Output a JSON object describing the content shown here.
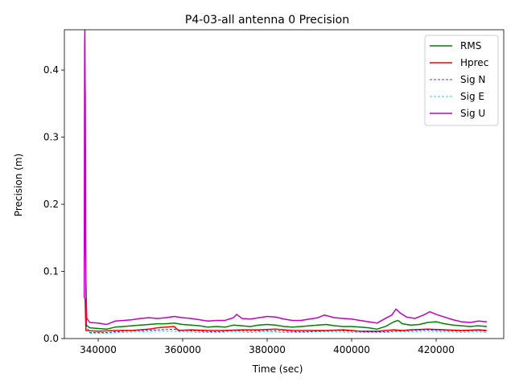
{
  "chart_data": {
    "type": "line",
    "title": "P4-03-all antenna 0 Precision",
    "xlabel": "Time (sec)",
    "ylabel": "Precision (m)",
    "xlim": [
      332000,
      436000
    ],
    "ylim": [
      0,
      0.46
    ],
    "xticks": [
      340000,
      360000,
      380000,
      400000,
      420000
    ],
    "yticks": [
      0.0,
      0.1,
      0.2,
      0.3,
      0.4
    ],
    "xtick_labels": [
      "340000",
      "360000",
      "380000",
      "400000",
      "420000"
    ],
    "ytick_labels": [
      "0.0",
      "0.1",
      "0.2",
      "0.3",
      "0.4"
    ],
    "grid": false,
    "legend_position": "top-right",
    "series": [
      {
        "name": "RMS",
        "color": "#008000",
        "style": "solid",
        "points": [
          [
            336800,
            0.24
          ],
          [
            336900,
            0.23
          ],
          [
            337000,
            0.15
          ],
          [
            337200,
            0.02
          ],
          [
            338000,
            0.016
          ],
          [
            340000,
            0.015
          ],
          [
            342000,
            0.014
          ],
          [
            344000,
            0.017
          ],
          [
            346000,
            0.018
          ],
          [
            348000,
            0.019
          ],
          [
            350000,
            0.02
          ],
          [
            352000,
            0.021
          ],
          [
            354000,
            0.022
          ],
          [
            356000,
            0.022
          ],
          [
            358000,
            0.023
          ],
          [
            360000,
            0.021
          ],
          [
            362000,
            0.02
          ],
          [
            364000,
            0.019
          ],
          [
            366000,
            0.017
          ],
          [
            368000,
            0.018
          ],
          [
            370000,
            0.017
          ],
          [
            372000,
            0.02
          ],
          [
            374000,
            0.019
          ],
          [
            376000,
            0.018
          ],
          [
            378000,
            0.02
          ],
          [
            380000,
            0.021
          ],
          [
            382000,
            0.02
          ],
          [
            384000,
            0.018
          ],
          [
            386000,
            0.017
          ],
          [
            388000,
            0.018
          ],
          [
            390000,
            0.019
          ],
          [
            392000,
            0.02
          ],
          [
            394000,
            0.021
          ],
          [
            396000,
            0.019
          ],
          [
            398000,
            0.018
          ],
          [
            400000,
            0.018
          ],
          [
            402000,
            0.017
          ],
          [
            404000,
            0.016
          ],
          [
            406000,
            0.014
          ],
          [
            408000,
            0.018
          ],
          [
            410000,
            0.025
          ],
          [
            411000,
            0.027
          ],
          [
            412000,
            0.022
          ],
          [
            414000,
            0.02
          ],
          [
            416000,
            0.021
          ],
          [
            418000,
            0.024
          ],
          [
            420000,
            0.025
          ],
          [
            422000,
            0.022
          ],
          [
            424000,
            0.02
          ],
          [
            426000,
            0.019
          ],
          [
            428000,
            0.018
          ],
          [
            430000,
            0.019
          ],
          [
            432000,
            0.018
          ]
        ]
      },
      {
        "name": "Hprec",
        "color": "#ff0000",
        "style": "solid",
        "points": [
          [
            336900,
            0.06
          ],
          [
            337100,
            0.012
          ],
          [
            340000,
            0.011
          ],
          [
            344000,
            0.012
          ],
          [
            348000,
            0.012
          ],
          [
            350000,
            0.013
          ],
          [
            352000,
            0.014
          ],
          [
            354000,
            0.016
          ],
          [
            356000,
            0.017
          ],
          [
            358000,
            0.018
          ],
          [
            359000,
            0.012
          ],
          [
            362000,
            0.013
          ],
          [
            366000,
            0.012
          ],
          [
            370000,
            0.012
          ],
          [
            374000,
            0.013
          ],
          [
            378000,
            0.013
          ],
          [
            382000,
            0.014
          ],
          [
            386000,
            0.012
          ],
          [
            390000,
            0.012
          ],
          [
            394000,
            0.012
          ],
          [
            398000,
            0.013
          ],
          [
            402000,
            0.011
          ],
          [
            406000,
            0.011
          ],
          [
            410000,
            0.013
          ],
          [
            412000,
            0.012
          ],
          [
            414000,
            0.013
          ],
          [
            418000,
            0.014
          ],
          [
            422000,
            0.013
          ],
          [
            426000,
            0.012
          ],
          [
            430000,
            0.013
          ],
          [
            432000,
            0.012
          ]
        ]
      },
      {
        "name": "Sig N",
        "color": "#0000cc",
        "style": "dashed",
        "points": [
          [
            337000,
            0.02
          ],
          [
            338000,
            0.009
          ],
          [
            342000,
            0.009
          ],
          [
            346000,
            0.011
          ],
          [
            350000,
            0.012
          ],
          [
            354000,
            0.013
          ],
          [
            358000,
            0.014
          ],
          [
            360000,
            0.012
          ],
          [
            364000,
            0.011
          ],
          [
            368000,
            0.01
          ],
          [
            372000,
            0.012
          ],
          [
            376000,
            0.011
          ],
          [
            380000,
            0.012
          ],
          [
            384000,
            0.011
          ],
          [
            388000,
            0.01
          ],
          [
            392000,
            0.011
          ],
          [
            396000,
            0.012
          ],
          [
            400000,
            0.011
          ],
          [
            404000,
            0.01
          ],
          [
            408000,
            0.01
          ],
          [
            410000,
            0.011
          ],
          [
            414000,
            0.012
          ],
          [
            418000,
            0.013
          ],
          [
            422000,
            0.012
          ],
          [
            426000,
            0.011
          ],
          [
            430000,
            0.012
          ],
          [
            432000,
            0.011
          ]
        ]
      },
      {
        "name": "Sig E",
        "color": "#00bfbf",
        "style": "dashed",
        "points": [
          [
            337000,
            0.018
          ],
          [
            338000,
            0.008
          ],
          [
            342000,
            0.008
          ],
          [
            346000,
            0.009
          ],
          [
            350000,
            0.01
          ],
          [
            354000,
            0.011
          ],
          [
            358000,
            0.011
          ],
          [
            360000,
            0.01
          ],
          [
            364000,
            0.009
          ],
          [
            368000,
            0.009
          ],
          [
            372000,
            0.01
          ],
          [
            376000,
            0.009
          ],
          [
            380000,
            0.01
          ],
          [
            384000,
            0.009
          ],
          [
            388000,
            0.009
          ],
          [
            392000,
            0.01
          ],
          [
            396000,
            0.01
          ],
          [
            400000,
            0.009
          ],
          [
            404000,
            0.009
          ],
          [
            408000,
            0.009
          ],
          [
            410000,
            0.01
          ],
          [
            414000,
            0.01
          ],
          [
            418000,
            0.011
          ],
          [
            422000,
            0.01
          ],
          [
            426000,
            0.009
          ],
          [
            430000,
            0.01
          ],
          [
            432000,
            0.009
          ]
        ]
      },
      {
        "name": "Sig U",
        "color": "#bf00bf",
        "style": "solid",
        "points": [
          [
            336700,
            0.06
          ],
          [
            336750,
            0.3
          ],
          [
            336800,
            0.44
          ],
          [
            336850,
            0.46
          ],
          [
            336900,
            0.39
          ],
          [
            336950,
            0.36
          ],
          [
            337000,
            0.27
          ],
          [
            337050,
            0.15
          ],
          [
            337100,
            0.08
          ],
          [
            337300,
            0.03
          ],
          [
            338000,
            0.024
          ],
          [
            340000,
            0.023
          ],
          [
            342000,
            0.021
          ],
          [
            344000,
            0.026
          ],
          [
            346000,
            0.027
          ],
          [
            348000,
            0.028
          ],
          [
            350000,
            0.03
          ],
          [
            352000,
            0.031
          ],
          [
            354000,
            0.03
          ],
          [
            356000,
            0.031
          ],
          [
            358000,
            0.033
          ],
          [
            360000,
            0.031
          ],
          [
            362000,
            0.03
          ],
          [
            364000,
            0.028
          ],
          [
            366000,
            0.026
          ],
          [
            368000,
            0.027
          ],
          [
            370000,
            0.027
          ],
          [
            372000,
            0.031
          ],
          [
            372800,
            0.036
          ],
          [
            374000,
            0.03
          ],
          [
            376000,
            0.029
          ],
          [
            378000,
            0.031
          ],
          [
            380000,
            0.033
          ],
          [
            382000,
            0.032
          ],
          [
            384000,
            0.029
          ],
          [
            386000,
            0.027
          ],
          [
            388000,
            0.027
          ],
          [
            390000,
            0.029
          ],
          [
            392000,
            0.031
          ],
          [
            393500,
            0.035
          ],
          [
            396000,
            0.031
          ],
          [
            398000,
            0.03
          ],
          [
            400000,
            0.029
          ],
          [
            402000,
            0.027
          ],
          [
            404000,
            0.025
          ],
          [
            406000,
            0.023
          ],
          [
            408000,
            0.03
          ],
          [
            409500,
            0.035
          ],
          [
            410500,
            0.044
          ],
          [
            411500,
            0.038
          ],
          [
            413000,
            0.032
          ],
          [
            415000,
            0.03
          ],
          [
            417000,
            0.035
          ],
          [
            418500,
            0.04
          ],
          [
            420000,
            0.036
          ],
          [
            422000,
            0.032
          ],
          [
            424000,
            0.028
          ],
          [
            426000,
            0.025
          ],
          [
            428000,
            0.024
          ],
          [
            430000,
            0.026
          ],
          [
            432000,
            0.025
          ]
        ]
      }
    ]
  }
}
